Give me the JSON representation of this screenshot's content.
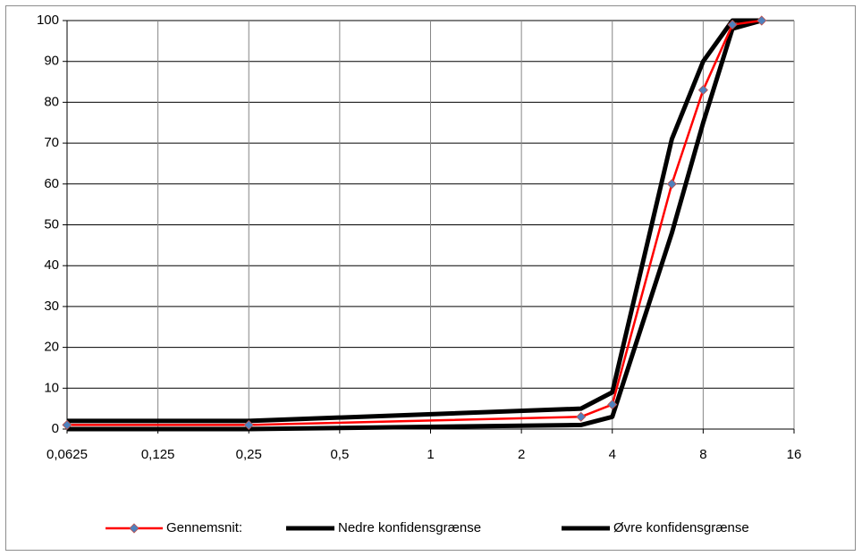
{
  "chart_data": {
    "type": "line",
    "xscale": "log",
    "xlim": [
      0.0625,
      16
    ],
    "xticks": [
      {
        "value": 0.0625,
        "label": "0,0625"
      },
      {
        "value": 0.125,
        "label": "0,125"
      },
      {
        "value": 0.25,
        "label": "0,25"
      },
      {
        "value": 0.5,
        "label": "0,5"
      },
      1,
      2,
      4,
      8,
      16
    ],
    "ylim": [
      0,
      100
    ],
    "yticks": [
      0,
      10,
      20,
      30,
      40,
      50,
      60,
      70,
      80,
      90,
      100
    ],
    "grid": true,
    "legend": "bottom",
    "x": [
      0.0625,
      0.25,
      3.15,
      4,
      6.3,
      8,
      10,
      12.5
    ],
    "series": [
      {
        "name": "Gennemsnit:",
        "color": "#ff0000",
        "marker": "diamond",
        "values": [
          1,
          1,
          3,
          6,
          60,
          83,
          99,
          100
        ]
      },
      {
        "name": "Nedre konfidensgrænse",
        "color": "#000000",
        "values": [
          0,
          0,
          1,
          3,
          48,
          75,
          98,
          100
        ]
      },
      {
        "name": "Øvre konfidensgrænse",
        "color": "#000000",
        "values": [
          2,
          2,
          5,
          9,
          71,
          90,
          100,
          100
        ]
      }
    ]
  }
}
